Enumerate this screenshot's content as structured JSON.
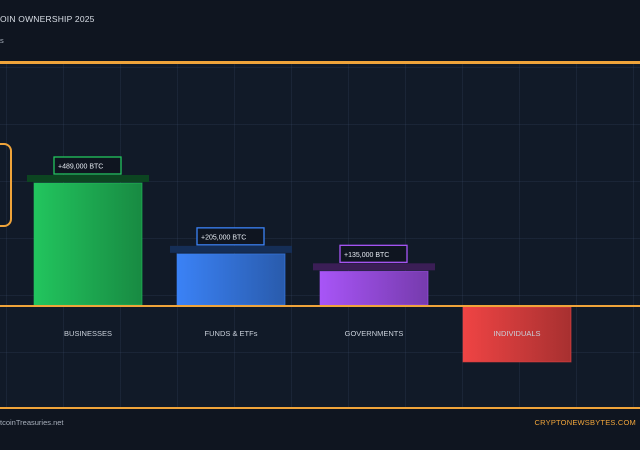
{
  "header": {
    "title": "OIN OWNERSHIP 2025",
    "subtitle": "s"
  },
  "footer": {
    "source": "tcoinTreasuries.net",
    "brand": "CRYPTONEWSBYTES.COM"
  },
  "colors": {
    "accent": "#f0a43a",
    "background": "#0f1520"
  },
  "chart_data": {
    "type": "bar",
    "categories": [
      "BUSINESSES",
      "FUNDS & ETFs",
      "GOVERNMENTS",
      "INDIVIDUALS"
    ],
    "values": [
      489000,
      205000,
      135000,
      -220000
    ],
    "value_labels": [
      "+489,000 BTC",
      "+205,000 BTC",
      "+135,000 BTC",
      ""
    ],
    "colors": [
      "#22c55e",
      "#3b82f6",
      "#a855f7",
      "#ef4444"
    ],
    "ylim": [
      -220000,
      500000
    ],
    "grid": true
  }
}
